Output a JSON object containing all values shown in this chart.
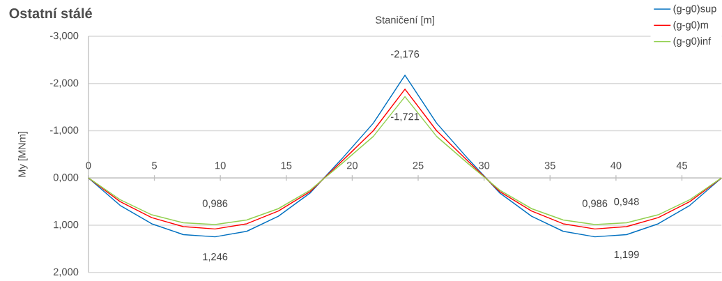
{
  "chart_data": {
    "type": "line",
    "title": "Ostatní stálé",
    "xlabel": "Staničení [m]",
    "ylabel": "My [MNm]",
    "x": [
      0,
      2.4,
      4.8,
      7.2,
      9.6,
      12.0,
      14.4,
      16.8,
      19.2,
      21.6,
      24.0,
      26.4,
      28.8,
      31.2,
      33.6,
      36.0,
      38.4,
      40.8,
      43.2,
      45.6,
      48.0
    ],
    "series": [
      {
        "name": "(g-g0)sup",
        "color": "#0070c0",
        "values": [
          0,
          0.58,
          0.97,
          1.2,
          1.246,
          1.13,
          0.81,
          0.32,
          -0.4,
          -1.16,
          -2.176,
          -1.16,
          -0.4,
          0.32,
          0.81,
          1.13,
          1.246,
          1.199,
          0.97,
          0.58,
          0
        ]
      },
      {
        "name": "(g-g0)m",
        "color": "#ff0000",
        "values": [
          0,
          0.5,
          0.84,
          1.03,
          1.08,
          0.97,
          0.7,
          0.29,
          -0.35,
          -1.0,
          -1.88,
          -1.0,
          -0.35,
          0.29,
          0.7,
          0.97,
          1.08,
          1.03,
          0.84,
          0.5,
          0
        ]
      },
      {
        "name": "(g-g0)inf",
        "color": "#92d050",
        "values": [
          0,
          0.46,
          0.78,
          0.95,
          0.986,
          0.89,
          0.65,
          0.26,
          -0.3,
          -0.88,
          -1.721,
          -0.88,
          -0.3,
          0.26,
          0.65,
          0.89,
          0.986,
          0.948,
          0.78,
          0.46,
          0
        ]
      }
    ],
    "xlim": [
      0,
      48
    ],
    "xticks": [
      0,
      5,
      10,
      15,
      20,
      25,
      30,
      35,
      40,
      45
    ],
    "ylim": [
      2,
      -3
    ],
    "yticks": [
      {
        "value": -3,
        "label": "-3,000"
      },
      {
        "value": -2,
        "label": "-2,000"
      },
      {
        "value": -1,
        "label": "-1,000"
      },
      {
        "value": 0,
        "label": "0,000"
      },
      {
        "value": 1,
        "label": "1,000"
      },
      {
        "value": 2,
        "label": "2,000"
      }
    ],
    "annotations": [
      {
        "text": "-2,176",
        "x": 24.0,
        "y": -2.176
      },
      {
        "text": "-1,721",
        "x": 24.0,
        "y": -1.721
      },
      {
        "text": "0,986",
        "x": 9.6,
        "y": 0.986
      },
      {
        "text": "1,246",
        "x": 9.6,
        "y": 1.246
      },
      {
        "text": "0,986",
        "x": 38.4,
        "y": 0.986
      },
      {
        "text": "0,948",
        "x": 40.8,
        "y": 0.948
      },
      {
        "text": "1,199",
        "x": 40.8,
        "y": 1.199
      }
    ],
    "grid": "y",
    "legend": "top right",
    "marker": "none",
    "line_style": "solid"
  }
}
